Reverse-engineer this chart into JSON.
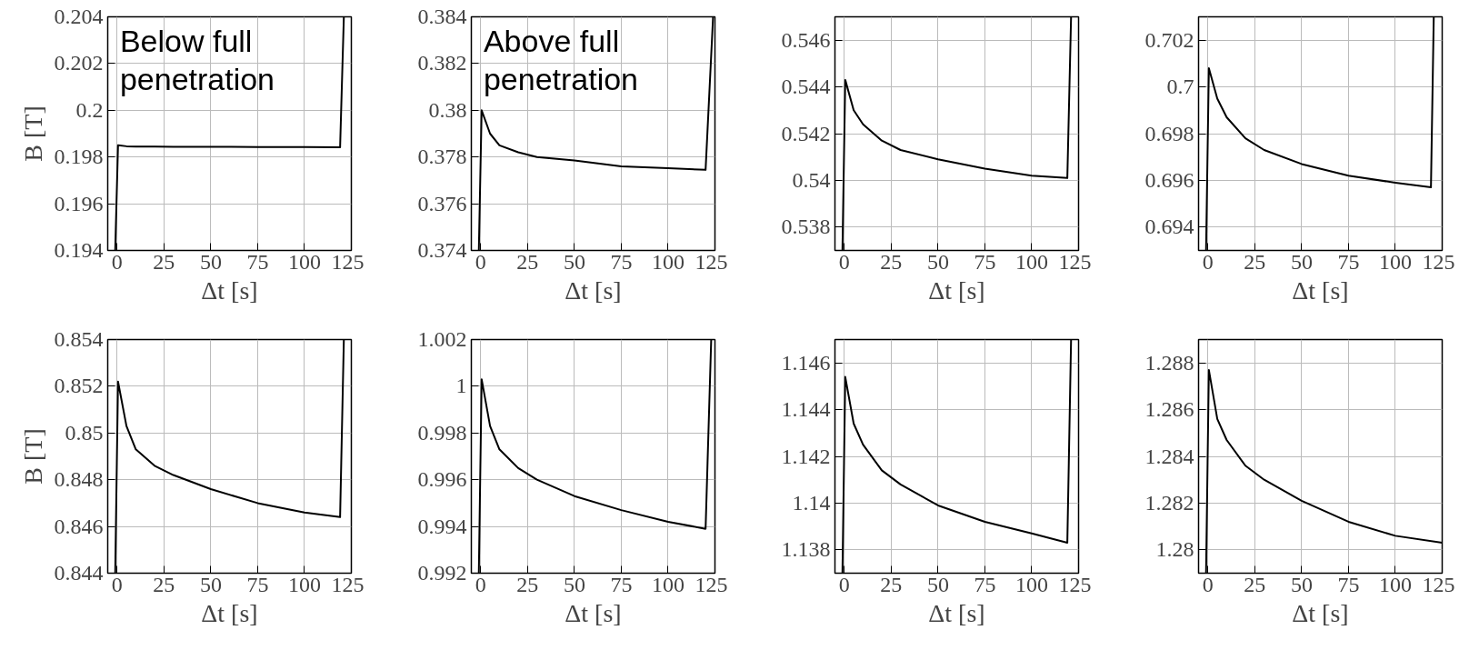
{
  "chart_data": [
    {
      "type": "line",
      "xlabel": "Δt [s]",
      "ylabel": "B [T]",
      "annotations": [
        "Below full\npenetration"
      ],
      "x": [
        -1,
        0.5,
        5,
        10,
        20,
        30,
        50,
        75,
        100,
        119,
        121
      ],
      "values": [
        0.194,
        0.1985,
        0.19846,
        0.19845,
        0.19845,
        0.19844,
        0.19844,
        0.19843,
        0.19843,
        0.19842,
        0.204
      ],
      "color": "#000000",
      "xlim": [
        -5,
        125
      ],
      "xticks": [
        0,
        25,
        50,
        75,
        100,
        125
      ],
      "ylim": [
        0.194,
        0.204
      ],
      "yticks": [
        0.194,
        0.196,
        0.198,
        0.2,
        0.202,
        0.204
      ],
      "grid": true
    },
    {
      "type": "line",
      "xlabel": "Δt [s]",
      "annotations": [
        "Above full\npenetration"
      ],
      "x": [
        -1,
        0.5,
        5,
        10,
        20,
        30,
        50,
        75,
        100,
        120,
        124
      ],
      "values": [
        0.374,
        0.38,
        0.379,
        0.3785,
        0.3782,
        0.378,
        0.37785,
        0.3776,
        0.37752,
        0.37745,
        0.384
      ],
      "color": "#000000",
      "xlim": [
        -5,
        125
      ],
      "xticks": [
        0,
        25,
        50,
        75,
        100,
        125
      ],
      "ylim": [
        0.374,
        0.384
      ],
      "yticks": [
        0.374,
        0.376,
        0.378,
        0.38,
        0.382,
        0.384
      ],
      "grid": true
    },
    {
      "type": "line",
      "xlabel": "Δt [s]",
      "x": [
        -1,
        0.5,
        5,
        10,
        20,
        30,
        50,
        75,
        100,
        119,
        121
      ],
      "values": [
        0.537,
        0.5443,
        0.543,
        0.5424,
        0.5417,
        0.5413,
        0.5409,
        0.5405,
        0.5402,
        0.5401,
        0.547
      ],
      "color": "#000000",
      "xlim": [
        -5,
        125
      ],
      "xticks": [
        0,
        25,
        50,
        75,
        100,
        125
      ],
      "ylim": [
        0.537,
        0.547
      ],
      "yticks": [
        0.538,
        0.54,
        0.542,
        0.544,
        0.546
      ],
      "grid": true
    },
    {
      "type": "line",
      "xlabel": "Δt [s]",
      "x": [
        -1,
        0.5,
        5,
        10,
        20,
        30,
        50,
        75,
        100,
        119,
        120.5
      ],
      "values": [
        0.693,
        0.7008,
        0.6995,
        0.6987,
        0.6978,
        0.6973,
        0.6967,
        0.6962,
        0.6959,
        0.6957,
        0.703
      ],
      "color": "#000000",
      "xlim": [
        -5,
        125
      ],
      "xticks": [
        0,
        25,
        50,
        75,
        100,
        125
      ],
      "ylim": [
        0.693,
        0.703
      ],
      "yticks": [
        0.694,
        0.696,
        0.698,
        0.7,
        0.702
      ],
      "grid": true
    },
    {
      "type": "line",
      "xlabel": "Δt [s]",
      "ylabel": "B [T]",
      "x": [
        -1,
        0.5,
        5,
        10,
        20,
        30,
        50,
        75,
        100,
        119,
        121
      ],
      "values": [
        0.844,
        0.8522,
        0.8503,
        0.8493,
        0.8486,
        0.8482,
        0.8476,
        0.847,
        0.8466,
        0.8464,
        0.854
      ],
      "color": "#000000",
      "xlim": [
        -5,
        125
      ],
      "xticks": [
        0,
        25,
        50,
        75,
        100,
        125
      ],
      "ylim": [
        0.844,
        0.854
      ],
      "yticks": [
        0.844,
        0.846,
        0.848,
        0.85,
        0.852,
        0.854
      ],
      "grid": true
    },
    {
      "type": "line",
      "xlabel": "Δt [s]",
      "x": [
        -1,
        0.5,
        5,
        10,
        20,
        30,
        50,
        75,
        100,
        120,
        123
      ],
      "values": [
        0.992,
        1.0003,
        0.9983,
        0.9973,
        0.9965,
        0.996,
        0.9953,
        0.9947,
        0.9942,
        0.9939,
        1.002
      ],
      "color": "#000000",
      "xlim": [
        -5,
        125
      ],
      "xticks": [
        0,
        25,
        50,
        75,
        100,
        125
      ],
      "ylim": [
        0.992,
        1.002
      ],
      "yticks": [
        0.992,
        0.994,
        0.996,
        0.998,
        1,
        1.002
      ],
      "grid": true
    },
    {
      "type": "line",
      "xlabel": "Δt [s]",
      "x": [
        -1,
        0.5,
        5,
        10,
        20,
        30,
        50,
        75,
        100,
        119,
        121
      ],
      "values": [
        1.137,
        1.1454,
        1.1434,
        1.1425,
        1.1414,
        1.1408,
        1.1399,
        1.1392,
        1.1387,
        1.1383,
        1.147
      ],
      "color": "#000000",
      "xlim": [
        -5,
        125
      ],
      "xticks": [
        0,
        25,
        50,
        75,
        100,
        125
      ],
      "ylim": [
        1.137,
        1.147
      ],
      "yticks": [
        1.138,
        1.14,
        1.142,
        1.144,
        1.146
      ],
      "grid": true
    },
    {
      "type": "line",
      "xlabel": "Δt [s]",
      "x": [
        -1,
        0.5,
        5,
        10,
        20,
        30,
        50,
        75,
        100,
        125
      ],
      "values": [
        1.279,
        1.2877,
        1.2856,
        1.2847,
        1.2836,
        1.283,
        1.2821,
        1.2812,
        1.2806,
        1.2803
      ],
      "color": "#000000",
      "xlim": [
        -5,
        125
      ],
      "xticks": [
        0,
        25,
        50,
        75,
        100,
        125
      ],
      "ylim": [
        1.279,
        1.289
      ],
      "yticks": [
        1.28,
        1.282,
        1.284,
        1.286,
        1.288
      ],
      "grid": true
    }
  ]
}
